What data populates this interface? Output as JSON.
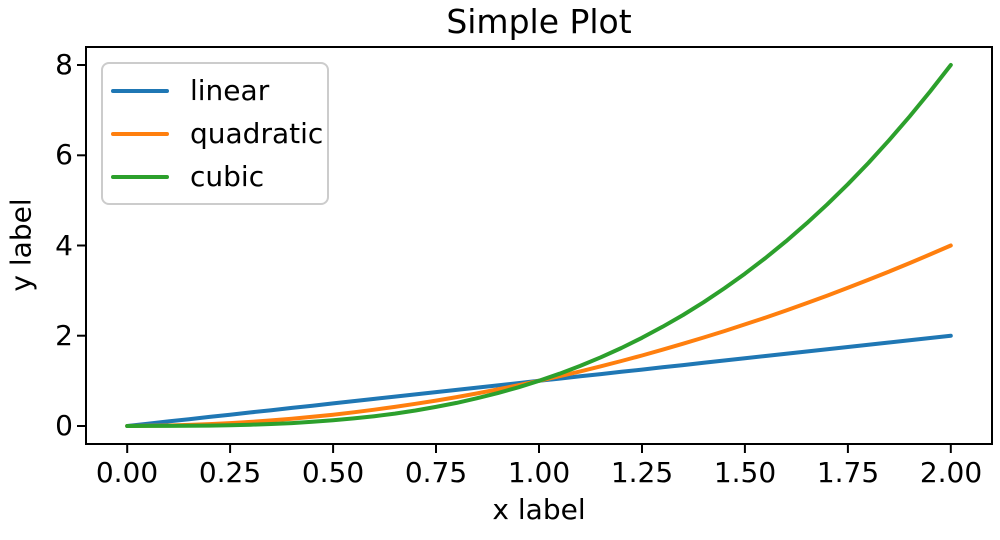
{
  "figure": {
    "background": "#ffffff",
    "axes_edge_color": "#000000",
    "legend_border_color": "#cccccc"
  },
  "chart_data": {
    "type": "line",
    "title": "Simple Plot",
    "xlabel": "x label",
    "ylabel": "y label",
    "grid": false,
    "legend_position": "upper left",
    "xlim": [
      -0.1,
      2.1
    ],
    "ylim": [
      -0.4,
      8.4
    ],
    "xticks": [
      0,
      0.25,
      0.5,
      0.75,
      1,
      1.25,
      1.5,
      1.75,
      2
    ],
    "xtick_labels": [
      "0.00",
      "0.25",
      "0.50",
      "0.75",
      "1.00",
      "1.25",
      "1.50",
      "1.75",
      "2.00"
    ],
    "yticks": [
      0,
      2,
      4,
      6,
      8
    ],
    "ytick_labels": [
      "0",
      "2",
      "4",
      "6",
      "8"
    ],
    "x": [
      0,
      0.05,
      0.1,
      0.15,
      0.2,
      0.25,
      0.3,
      0.35,
      0.4,
      0.45,
      0.5,
      0.55,
      0.6,
      0.65,
      0.7,
      0.75,
      0.8,
      0.85,
      0.9,
      0.95,
      1,
      1.05,
      1.1,
      1.15,
      1.2,
      1.25,
      1.3,
      1.35,
      1.4,
      1.45,
      1.5,
      1.55,
      1.6,
      1.65,
      1.7,
      1.75,
      1.8,
      1.85,
      1.9,
      1.95,
      2
    ],
    "series": [
      {
        "name": "linear",
        "color": "#1f77b4",
        "values": [
          0,
          0.05,
          0.1,
          0.15,
          0.2,
          0.25,
          0.3,
          0.35,
          0.4,
          0.45,
          0.5,
          0.55,
          0.6,
          0.65,
          0.7,
          0.75,
          0.8,
          0.85,
          0.9,
          0.95,
          1,
          1.05,
          1.1,
          1.15,
          1.2,
          1.25,
          1.3,
          1.35,
          1.4,
          1.45,
          1.5,
          1.55,
          1.6,
          1.65,
          1.7,
          1.75,
          1.8,
          1.85,
          1.9,
          1.95,
          2
        ]
      },
      {
        "name": "quadratic",
        "color": "#ff7f0e",
        "values": [
          0,
          0.0025,
          0.01,
          0.0225,
          0.04,
          0.0625,
          0.09,
          0.1225,
          0.16,
          0.2025,
          0.25,
          0.3025,
          0.36,
          0.4225,
          0.49,
          0.5625,
          0.64,
          0.7225,
          0.81,
          0.9025,
          1,
          1.1025,
          1.21,
          1.3225,
          1.44,
          1.5625,
          1.69,
          1.8225,
          1.96,
          2.1025,
          2.25,
          2.4025,
          2.56,
          2.7225,
          2.89,
          3.0625,
          3.24,
          3.4225,
          3.61,
          3.8025,
          4
        ]
      },
      {
        "name": "cubic",
        "color": "#2ca02c",
        "values": [
          0,
          0.000125,
          0.001,
          0.003375,
          0.008,
          0.015625,
          0.027,
          0.042875,
          0.064,
          0.091125,
          0.125,
          0.166375,
          0.216,
          0.274625,
          0.343,
          0.421875,
          0.512,
          0.614125,
          0.729,
          0.857375,
          1,
          1.157625,
          1.331,
          1.520875,
          1.728,
          1.953125,
          2.197,
          2.460375,
          2.744,
          3.048625,
          3.375,
          3.723875,
          4.096,
          4.492125,
          4.913,
          5.359375,
          5.832,
          6.331625,
          6.859,
          7.414875,
          8
        ]
      }
    ]
  }
}
